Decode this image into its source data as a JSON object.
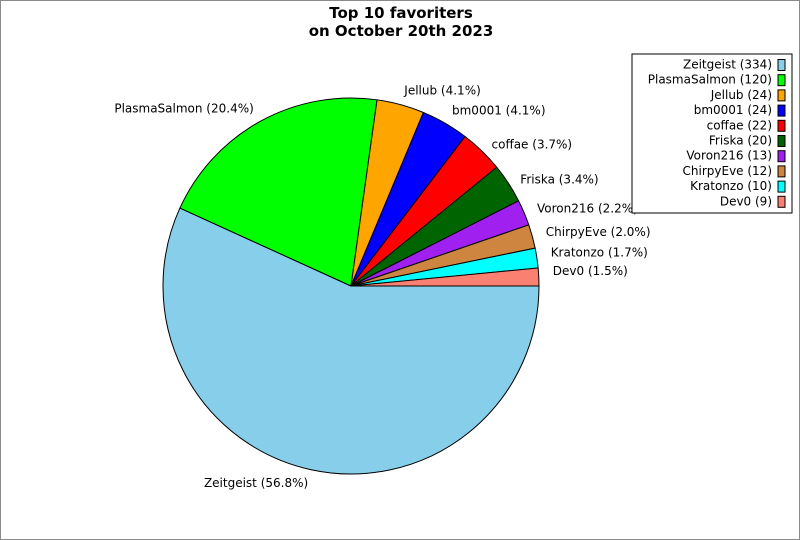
{
  "chart_data": {
    "type": "pie",
    "title_lines": [
      "Top 10 favoriters",
      "on October 20th 2023"
    ],
    "slices": [
      {
        "name": "Zeitgeist",
        "count": 334,
        "percent": 56.8,
        "color": "#87ceeb"
      },
      {
        "name": "PlasmaSalmon",
        "count": 120,
        "percent": 20.4,
        "color": "#00ff00"
      },
      {
        "name": "Jellub",
        "count": 24,
        "percent": 4.1,
        "color": "#ffa500"
      },
      {
        "name": "bm0001",
        "count": 24,
        "percent": 4.1,
        "color": "#0000ff"
      },
      {
        "name": "coffae",
        "count": 22,
        "percent": 3.7,
        "color": "#ff0000"
      },
      {
        "name": "Friska",
        "count": 20,
        "percent": 3.4,
        "color": "#006400"
      },
      {
        "name": "Voron216",
        "count": 13,
        "percent": 2.2,
        "color": "#a020f0"
      },
      {
        "name": "ChirpyEve",
        "count": 12,
        "percent": 2.0,
        "color": "#cd853f"
      },
      {
        "name": "Kratonzo",
        "count": 10,
        "percent": 1.7,
        "color": "#00ffff"
      },
      {
        "name": "Dev0",
        "count": 9,
        "percent": 1.5,
        "color": "#fa8072"
      }
    ],
    "slice_labels": [
      "Zeitgeist (56.8%)",
      "PlasmaSalmon (20.4%)",
      "Jellub (4.1%)",
      "bm0001 (4.1%)",
      "coffae (3.7%)",
      "Friska (3.4%)",
      "Voron216 (2.2%)",
      "ChirpyEve (2.0%)",
      "Kratonzo (1.7%)",
      "Dev0 (1.5%)"
    ],
    "legend_entries": [
      "Zeitgeist (334)",
      "PlasmaSalmon (120)",
      "Jellub (24)",
      "bm0001 (24)",
      "coffae (22)",
      "Friska (20)",
      "Voron216 (13)",
      "ChirpyEve (12)",
      "Kratonzo (10)",
      "Dev0 (9)"
    ],
    "legend_position": "top-right",
    "start_angle": "3 o'clock",
    "direction": "clockwise"
  }
}
